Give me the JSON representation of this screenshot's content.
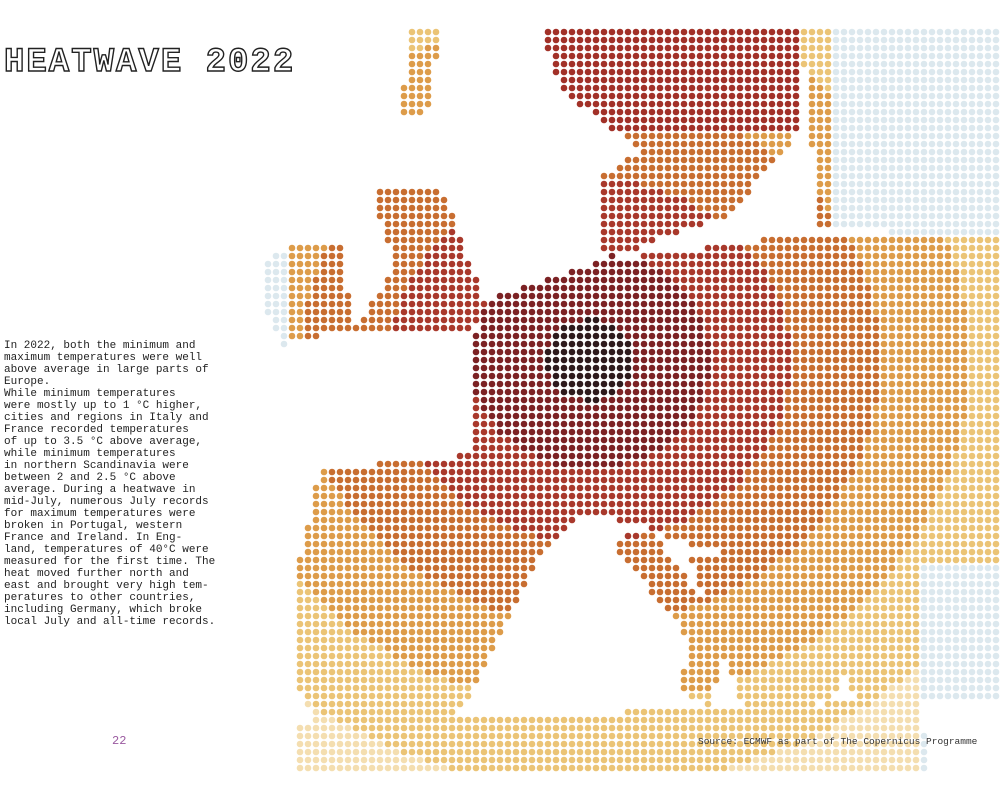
{
  "header": {
    "title": "HEATWAVE 2022"
  },
  "body": {
    "lines": [
      "In 2022, both the minimum and",
      "maximum temperatures were well",
      "above average in large parts of",
      "Europe.",
      "While minimum temperatures",
      "were mostly up to 1 °C higher,",
      "cities and regions in Italy and",
      "France recorded temperatures",
      "of up to 3.5 °C above average,",
      "while minimum temperatures",
      "in northern Scandinavia were",
      "between 2 and 2.5 °C above",
      "average. During a heatwave in",
      "mid-July, numerous July records",
      "for maximum temperatures were",
      "broken in Portugal, western",
      "France and Ireland. In Eng-",
      "land, temperatures of 40°C were",
      "measured for the first time. The",
      "heat moved further north and",
      "east and brought very high tem-",
      "peratures to other countries,",
      "including Germany, which broke",
      "local July and all-time records."
    ]
  },
  "footer": {
    "page_number": "22",
    "source": "Source: ECMWF as part of The Copernicus Programme"
  }
}
